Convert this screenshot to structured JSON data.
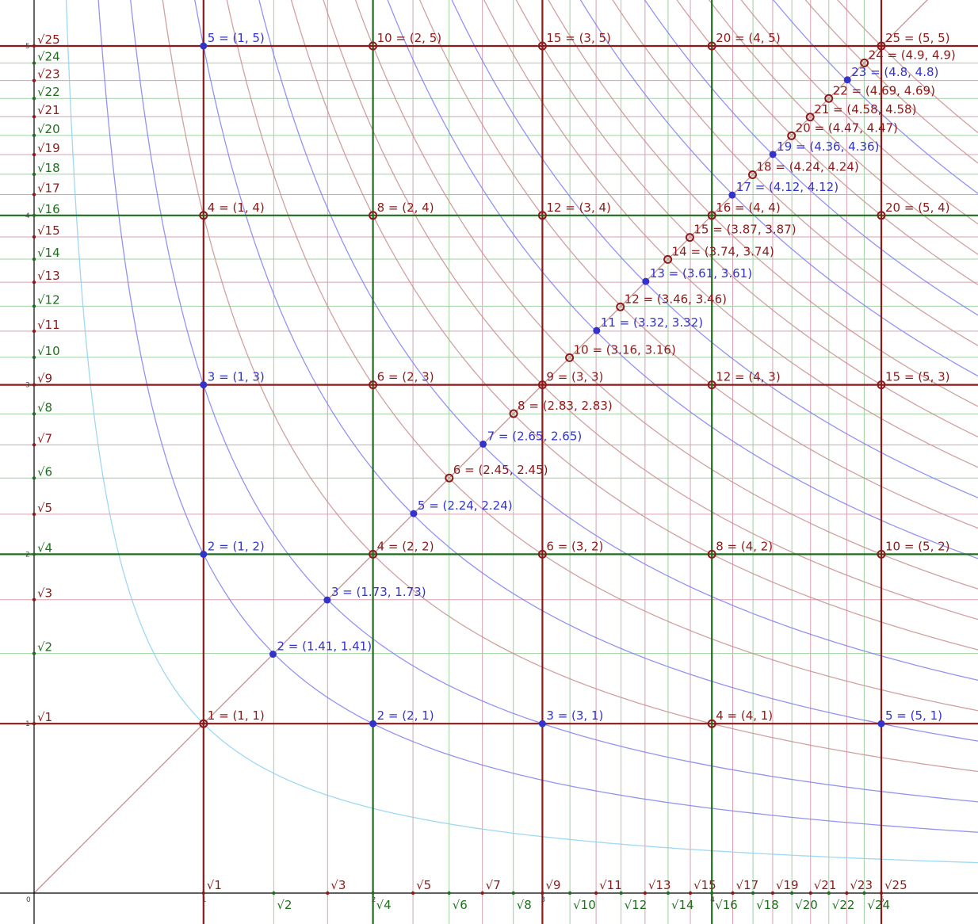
{
  "colors": {
    "maroon": "#8b1a1a",
    "green": "#1e6e1e",
    "blue": "#3333cc",
    "light_blue": "#8fd0f0",
    "curve_blue": "#8080f0",
    "curve_red": "#c89090",
    "fine_red": "#d8a0b0",
    "fine_green": "#a0d0a0",
    "axis": "#000000"
  },
  "diagram": {
    "origin_label": "0",
    "xlim": [
      0,
      5.5
    ],
    "ylim": [
      0,
      5.3
    ],
    "integer_tick_labels": [
      "1",
      "2",
      "3",
      "4",
      "5"
    ],
    "thick_lines": [
      {
        "value": 1,
        "color": "maroon"
      },
      {
        "value": 2,
        "color": "green"
      },
      {
        "value": 3,
        "color": "maroon"
      },
      {
        "value": 4,
        "color": "green"
      },
      {
        "value": 5,
        "color": "maroon"
      }
    ],
    "sqrt_labels_x": [
      {
        "n": 1,
        "text": "√1",
        "color": "maroon"
      },
      {
        "n": 2,
        "text": "√2",
        "color": "green"
      },
      {
        "n": 3,
        "text": "√3",
        "color": "maroon"
      },
      {
        "n": 4,
        "text": "√4",
        "color": "green"
      },
      {
        "n": 5,
        "text": "√5",
        "color": "maroon"
      },
      {
        "n": 6,
        "text": "√6",
        "color": "green"
      },
      {
        "n": 7,
        "text": "√7",
        "color": "maroon"
      },
      {
        "n": 8,
        "text": "√8",
        "color": "green"
      },
      {
        "n": 9,
        "text": "√9",
        "color": "maroon"
      },
      {
        "n": 10,
        "text": "√10",
        "color": "green"
      },
      {
        "n": 11,
        "text": "√11",
        "color": "maroon"
      },
      {
        "n": 12,
        "text": "√12",
        "color": "green"
      },
      {
        "n": 13,
        "text": "√13",
        "color": "maroon"
      },
      {
        "n": 14,
        "text": "√14",
        "color": "green"
      },
      {
        "n": 15,
        "text": "√15",
        "color": "maroon"
      },
      {
        "n": 16,
        "text": "√16",
        "color": "green"
      },
      {
        "n": 17,
        "text": "√17",
        "color": "maroon"
      },
      {
        "n": 18,
        "text": "√18",
        "color": "green"
      },
      {
        "n": 19,
        "text": "√19",
        "color": "maroon"
      },
      {
        "n": 20,
        "text": "√20",
        "color": "green"
      },
      {
        "n": 21,
        "text": "√21",
        "color": "maroon"
      },
      {
        "n": 22,
        "text": "√22",
        "color": "green"
      },
      {
        "n": 23,
        "text": "√23",
        "color": "maroon"
      },
      {
        "n": 24,
        "text": "√24",
        "color": "green"
      },
      {
        "n": 25,
        "text": "√25",
        "color": "maroon"
      }
    ],
    "sqrt_labels_y": [
      {
        "n": 1,
        "text": "√1",
        "color": "maroon"
      },
      {
        "n": 2,
        "text": "√2",
        "color": "green"
      },
      {
        "n": 3,
        "text": "√3",
        "color": "maroon"
      },
      {
        "n": 4,
        "text": "√4",
        "color": "green"
      },
      {
        "n": 5,
        "text": "√5",
        "color": "maroon"
      },
      {
        "n": 6,
        "text": "√6",
        "color": "green"
      },
      {
        "n": 7,
        "text": "√7",
        "color": "maroon"
      },
      {
        "n": 8,
        "text": "√8",
        "color": "green"
      },
      {
        "n": 9,
        "text": "√9",
        "color": "maroon"
      },
      {
        "n": 10,
        "text": "√10",
        "color": "green"
      },
      {
        "n": 11,
        "text": "√11",
        "color": "maroon"
      },
      {
        "n": 12,
        "text": "√12",
        "color": "green"
      },
      {
        "n": 13,
        "text": "√13",
        "color": "maroon"
      },
      {
        "n": 14,
        "text": "√14",
        "color": "green"
      },
      {
        "n": 15,
        "text": "√15",
        "color": "maroon"
      },
      {
        "n": 16,
        "text": "√16",
        "color": "green"
      },
      {
        "n": 17,
        "text": "√17",
        "color": "maroon"
      },
      {
        "n": 18,
        "text": "√18",
        "color": "green"
      },
      {
        "n": 19,
        "text": "√19",
        "color": "maroon"
      },
      {
        "n": 20,
        "text": "√20",
        "color": "green"
      },
      {
        "n": 21,
        "text": "√21",
        "color": "maroon"
      },
      {
        "n": 22,
        "text": "√22",
        "color": "green"
      },
      {
        "n": 23,
        "text": "√23",
        "color": "maroon"
      },
      {
        "n": 24,
        "text": "√24",
        "color": "green"
      },
      {
        "n": 25,
        "text": "√25",
        "color": "maroon"
      }
    ],
    "hyperbolas": [
      {
        "k": 1,
        "color": "light_blue"
      },
      {
        "k": 2,
        "color": "curve_blue"
      },
      {
        "k": 3,
        "color": "curve_blue"
      },
      {
        "k": 4,
        "color": "curve_red"
      },
      {
        "k": 5,
        "color": "curve_blue"
      },
      {
        "k": 6,
        "color": "curve_red"
      },
      {
        "k": 7,
        "color": "curve_blue"
      },
      {
        "k": 8,
        "color": "curve_red"
      },
      {
        "k": 9,
        "color": "curve_red"
      },
      {
        "k": 10,
        "color": "curve_red"
      },
      {
        "k": 11,
        "color": "curve_blue"
      },
      {
        "k": 12,
        "color": "curve_red"
      },
      {
        "k": 13,
        "color": "curve_blue"
      },
      {
        "k": 14,
        "color": "curve_red"
      },
      {
        "k": 15,
        "color": "curve_red"
      },
      {
        "k": 16,
        "color": "curve_red"
      },
      {
        "k": 17,
        "color": "curve_blue"
      },
      {
        "k": 18,
        "color": "curve_red"
      },
      {
        "k": 19,
        "color": "curve_blue"
      },
      {
        "k": 20,
        "color": "curve_red"
      },
      {
        "k": 21,
        "color": "curve_red"
      },
      {
        "k": 22,
        "color": "curve_red"
      },
      {
        "k": 23,
        "color": "curve_blue"
      },
      {
        "k": 24,
        "color": "curve_red"
      },
      {
        "k": 25,
        "color": "curve_red"
      }
    ],
    "points": [
      {
        "x": 1,
        "y": 1,
        "label": "1 = (1, 1)",
        "color": "maroon",
        "style": "open"
      },
      {
        "x": 1.41,
        "y": 1.41,
        "label": "2 = (1.41, 1.41)",
        "color": "blue",
        "style": "filled"
      },
      {
        "x": 1.73,
        "y": 1.73,
        "label": "3 = (1.73, 1.73)",
        "color": "blue",
        "style": "filled"
      },
      {
        "x": 2,
        "y": 2,
        "label": "4 = (2, 2)",
        "color": "maroon",
        "style": "open"
      },
      {
        "x": 2.24,
        "y": 2.24,
        "label": "5 = (2.24, 2.24)",
        "color": "blue",
        "style": "filled"
      },
      {
        "x": 2.45,
        "y": 2.45,
        "label": "6 = (2.45, 2.45)",
        "color": "maroon",
        "style": "open"
      },
      {
        "x": 2.65,
        "y": 2.65,
        "label": "7 = (2.65, 2.65)",
        "color": "blue",
        "style": "filled"
      },
      {
        "x": 2.83,
        "y": 2.83,
        "label": "8 = (2.83, 2.83)",
        "color": "maroon",
        "style": "open"
      },
      {
        "x": 3,
        "y": 3,
        "label": "9 = (3, 3)",
        "color": "maroon",
        "style": "open"
      },
      {
        "x": 3.16,
        "y": 3.16,
        "label": "10 = (3.16, 3.16)",
        "color": "maroon",
        "style": "open"
      },
      {
        "x": 3.32,
        "y": 3.32,
        "label": "11 = (3.32, 3.32)",
        "color": "blue",
        "style": "filled"
      },
      {
        "x": 3.46,
        "y": 3.46,
        "label": "12 = (3.46, 3.46)",
        "color": "maroon",
        "style": "open"
      },
      {
        "x": 3.61,
        "y": 3.61,
        "label": "13 = (3.61, 3.61)",
        "color": "blue",
        "style": "filled"
      },
      {
        "x": 3.74,
        "y": 3.74,
        "label": "14 = (3.74, 3.74)",
        "color": "maroon",
        "style": "open"
      },
      {
        "x": 3.87,
        "y": 3.87,
        "label": "15 = (3.87, 3.87)",
        "color": "maroon",
        "style": "open"
      },
      {
        "x": 4,
        "y": 4,
        "label": "16 = (4, 4)",
        "color": "maroon",
        "style": "open"
      },
      {
        "x": 4.12,
        "y": 4.12,
        "label": "17 = (4.12, 4.12)",
        "color": "blue",
        "style": "filled"
      },
      {
        "x": 4.24,
        "y": 4.24,
        "label": "18 = (4.24, 4.24)",
        "color": "maroon",
        "style": "open"
      },
      {
        "x": 4.36,
        "y": 4.36,
        "label": "19 = (4.36, 4.36)",
        "color": "blue",
        "style": "filled"
      },
      {
        "x": 4.47,
        "y": 4.47,
        "label": "20 = (4.47, 4.47)",
        "color": "maroon",
        "style": "open"
      },
      {
        "x": 4.58,
        "y": 4.58,
        "label": "21 = (4.58, 4.58)",
        "color": "maroon",
        "style": "open"
      },
      {
        "x": 4.69,
        "y": 4.69,
        "label": "22 = (4.69, 4.69)",
        "color": "maroon",
        "style": "open"
      },
      {
        "x": 4.8,
        "y": 4.8,
        "label": "23 = (4.8, 4.8)",
        "color": "blue",
        "style": "filled"
      },
      {
        "x": 4.9,
        "y": 4.9,
        "label": "24 = (4.9, 4.9)",
        "color": "maroon",
        "style": "open"
      },
      {
        "x": 5,
        "y": 5,
        "label": "25 = (5, 5)",
        "color": "maroon",
        "style": "open"
      },
      {
        "x": 2,
        "y": 1,
        "label": "2 = (2, 1)",
        "color": "blue",
        "style": "filled"
      },
      {
        "x": 3,
        "y": 1,
        "label": "3 = (3, 1)",
        "color": "blue",
        "style": "filled"
      },
      {
        "x": 4,
        "y": 1,
        "label": "4 = (4, 1)",
        "color": "maroon",
        "style": "open"
      },
      {
        "x": 5,
        "y": 1,
        "label": "5 = (5, 1)",
        "color": "blue",
        "style": "filled"
      },
      {
        "x": 1,
        "y": 2,
        "label": "2 = (1, 2)",
        "color": "blue",
        "style": "filled"
      },
      {
        "x": 3,
        "y": 2,
        "label": "6 = (3, 2)",
        "color": "maroon",
        "style": "open"
      },
      {
        "x": 4,
        "y": 2,
        "label": "8 = (4, 2)",
        "color": "maroon",
        "style": "open"
      },
      {
        "x": 5,
        "y": 2,
        "label": "10 = (5, 2)",
        "color": "maroon",
        "style": "open"
      },
      {
        "x": 1,
        "y": 3,
        "label": "3 = (1, 3)",
        "color": "blue",
        "style": "filled"
      },
      {
        "x": 2,
        "y": 3,
        "label": "6 = (2, 3)",
        "color": "maroon",
        "style": "open"
      },
      {
        "x": 4,
        "y": 3,
        "label": "12 = (4, 3)",
        "color": "maroon",
        "style": "open"
      },
      {
        "x": 5,
        "y": 3,
        "label": "15 = (5, 3)",
        "color": "maroon",
        "style": "open"
      },
      {
        "x": 1,
        "y": 4,
        "label": "4 = (1, 4)",
        "color": "maroon",
        "style": "open"
      },
      {
        "x": 2,
        "y": 4,
        "label": "8 = (2, 4)",
        "color": "maroon",
        "style": "open"
      },
      {
        "x": 3,
        "y": 4,
        "label": "12 = (3, 4)",
        "color": "maroon",
        "style": "open"
      },
      {
        "x": 5,
        "y": 4,
        "label": "20 = (5, 4)",
        "color": "maroon",
        "style": "open"
      },
      {
        "x": 1,
        "y": 5,
        "label": "5 = (1, 5)",
        "color": "blue",
        "style": "filled"
      },
      {
        "x": 2,
        "y": 5,
        "label": "10 = (2, 5)",
        "color": "maroon",
        "style": "open"
      },
      {
        "x": 3,
        "y": 5,
        "label": "15 = (3, 5)",
        "color": "maroon",
        "style": "open"
      },
      {
        "x": 4,
        "y": 5,
        "label": "20 = (4, 5)",
        "color": "maroon",
        "style": "open"
      }
    ]
  }
}
